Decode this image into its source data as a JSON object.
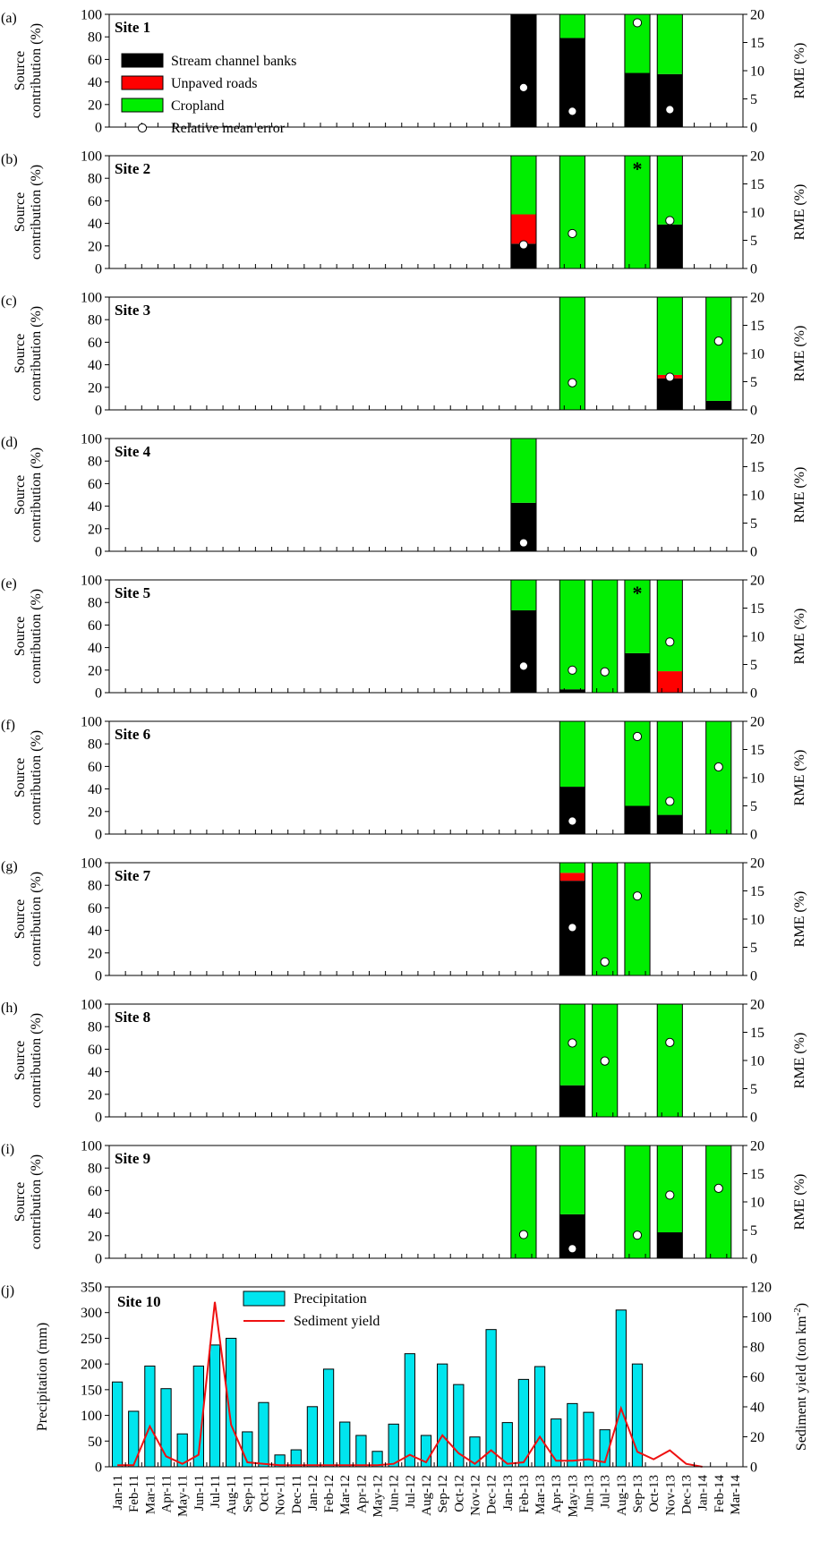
{
  "months": [
    "Jan-11",
    "Feb-11",
    "Mar-11",
    "Apr-11",
    "May-11",
    "Jun-11",
    "Jul-11",
    "Aug-11",
    "Sep-11",
    "Oct-11",
    "Nov-11",
    "Dec-11",
    "Jan-12",
    "Feb-12",
    "Mar-12",
    "Apr-12",
    "May-12",
    "Jun-12",
    "Jul-12",
    "Aug-12",
    "Sep-12",
    "Oct-12",
    "Nov-12",
    "Dec-12",
    "Jan-13",
    "Feb-13",
    "Mar-13",
    "Apr-13",
    "May-13",
    "Jun-13",
    "Jul-13",
    "Aug-13",
    "Sep-13",
    "Oct-13",
    "Nov-13",
    "Dec-13",
    "Jan-14",
    "Feb-14",
    "Mar-14"
  ],
  "colors": {
    "banks": "#000000",
    "roads": "#ff0000",
    "cropland": "#00ee00",
    "precip": "#00e5ee",
    "sediment": "#ee1111"
  },
  "source_axes": {
    "ylabel_line1": "Source",
    "ylabel_line2": "contribution (%)",
    "ylim": [
      0,
      100
    ],
    "yticks": [
      "0",
      "20",
      "40",
      "60",
      "80",
      "100"
    ],
    "rlabel": "RME (%)",
    "rlim": [
      0,
      20
    ],
    "rticks": [
      "0",
      "5",
      "10",
      "15",
      "20"
    ]
  },
  "legend_sources": {
    "banks": "Stream channel banks",
    "roads": "Unpaved roads",
    "cropland": "Cropland",
    "rme": "Relative mean error"
  },
  "chart_data": [
    {
      "type": "bar",
      "panel": "(a)",
      "title": "Site 1",
      "bars": [
        {
          "x": "Feb-13",
          "banks": 100,
          "roads": 0,
          "cropland": 0,
          "rme": 7
        },
        {
          "x": "May-13",
          "banks": 79,
          "roads": 0,
          "cropland": 21,
          "rme": 2.8
        },
        {
          "x": "Sep-13",
          "banks": 48,
          "roads": 0,
          "cropland": 52,
          "rme": 18.5
        },
        {
          "x": "Nov-13",
          "banks": 47,
          "roads": 0,
          "cropland": 53,
          "rme": 3.1
        }
      ]
    },
    {
      "type": "bar",
      "panel": "(b)",
      "title": "Site 2",
      "bars": [
        {
          "x": "Feb-13",
          "banks": 22,
          "roads": 26,
          "cropland": 52,
          "rme": 4.2
        },
        {
          "x": "May-13",
          "banks": 0,
          "roads": 0,
          "cropland": 100,
          "rme": 6.2
        },
        {
          "x": "Sep-13",
          "banks": 0,
          "roads": 0,
          "cropland": 100,
          "rme": null,
          "star": true
        },
        {
          "x": "Nov-13",
          "banks": 39,
          "roads": 0,
          "cropland": 61,
          "rme": 8.5
        }
      ]
    },
    {
      "type": "bar",
      "panel": "(c)",
      "title": "Site 3",
      "bars": [
        {
          "x": "May-13",
          "banks": 0,
          "roads": 0,
          "cropland": 100,
          "rme": 4.8
        },
        {
          "x": "Nov-13",
          "banks": 28,
          "roads": 3,
          "cropland": 69,
          "rme": 5.8
        },
        {
          "x": "Feb-14",
          "banks": 8,
          "roads": 0,
          "cropland": 92,
          "rme": 12.2
        }
      ]
    },
    {
      "type": "bar",
      "panel": "(d)",
      "title": "Site 4",
      "bars": [
        {
          "x": "Feb-13",
          "banks": 43,
          "roads": 0,
          "cropland": 57,
          "rme": 1.5
        }
      ]
    },
    {
      "type": "bar",
      "panel": "(e)",
      "title": "Site 5",
      "bars": [
        {
          "x": "Feb-13",
          "banks": 73,
          "roads": 0,
          "cropland": 27,
          "rme": 4.7
        },
        {
          "x": "May-13",
          "banks": 3,
          "roads": 0,
          "cropland": 97,
          "rme": 4
        },
        {
          "x": "Jul-13",
          "banks": 0,
          "roads": 0,
          "cropland": 100,
          "rme": 3.7
        },
        {
          "x": "Sep-13",
          "banks": 35,
          "roads": 0,
          "cropland": 65,
          "rme": null,
          "star": true
        },
        {
          "x": "Nov-13",
          "banks": 0,
          "roads": 19,
          "cropland": 81,
          "rme": 9
        }
      ]
    },
    {
      "type": "bar",
      "panel": "(f)",
      "title": "Site 6",
      "bars": [
        {
          "x": "May-13",
          "banks": 42,
          "roads": 0,
          "cropland": 58,
          "rme": 2.3
        },
        {
          "x": "Sep-13",
          "banks": 25,
          "roads": 0,
          "cropland": 75,
          "rme": 17.3
        },
        {
          "x": "Nov-13",
          "banks": 17,
          "roads": 0,
          "cropland": 83,
          "rme": 5.8
        },
        {
          "x": "Feb-14",
          "banks": 0,
          "roads": 0,
          "cropland": 100,
          "rme": 11.9
        }
      ]
    },
    {
      "type": "bar",
      "panel": "(g)",
      "title": "Site 7",
      "bars": [
        {
          "x": "May-13",
          "banks": 84,
          "roads": 7,
          "cropland": 9,
          "rme": 8.5
        },
        {
          "x": "Jul-13",
          "banks": 0,
          "roads": 0,
          "cropland": 100,
          "rme": 2.4
        },
        {
          "x": "Sep-13",
          "banks": 0,
          "roads": 0,
          "cropland": 100,
          "rme": 14.1
        }
      ]
    },
    {
      "type": "bar",
      "panel": "(h)",
      "title": "Site 8",
      "bars": [
        {
          "x": "May-13",
          "banks": 28,
          "roads": 0,
          "cropland": 72,
          "rme": 13.1
        },
        {
          "x": "Jul-13",
          "banks": 0,
          "roads": 0,
          "cropland": 100,
          "rme": 9.9
        },
        {
          "x": "Nov-13",
          "banks": 0,
          "roads": 0,
          "cropland": 100,
          "rme": 13.2
        }
      ]
    },
    {
      "type": "bar",
      "panel": "(i)",
      "title": "Site 9",
      "bars": [
        {
          "x": "Feb-13",
          "banks": 0,
          "roads": 0,
          "cropland": 100,
          "rme": 4.2
        },
        {
          "x": "May-13",
          "banks": 39,
          "roads": 0,
          "cropland": 61,
          "rme": 1.7
        },
        {
          "x": "Sep-13",
          "banks": 0,
          "roads": 0,
          "cropland": 100,
          "rme": 4.1
        },
        {
          "x": "Nov-13",
          "banks": 23,
          "roads": 0,
          "cropland": 77,
          "rme": 11.2
        },
        {
          "x": "Feb-14",
          "banks": 0,
          "roads": 0,
          "cropland": 100,
          "rme": 12.4
        }
      ]
    },
    {
      "type": "bar",
      "panel": "(j)",
      "title": "Site 10",
      "ylabel": "Precipitation (mm)",
      "ylim": [
        0,
        350
      ],
      "yticks": [
        "0",
        "50",
        "100",
        "150",
        "200",
        "250",
        "300",
        "350"
      ],
      "y2label_main": "Sediment yield (ton km",
      "y2label_sup": "-2",
      "y2label_end": ")",
      "y2lim": [
        0,
        120
      ],
      "y2ticks": [
        "0",
        "20",
        "40",
        "60",
        "80",
        "100",
        "120"
      ],
      "legend": {
        "precip": "Precipitation",
        "sediment": "Sediment yield"
      },
      "precipitation": [
        165,
        108,
        196,
        152,
        64,
        196,
        237,
        250,
        68,
        125,
        23,
        33,
        117,
        190,
        87,
        61,
        30,
        83,
        220,
        61,
        200,
        160,
        58,
        267,
        86,
        170,
        195,
        93,
        123,
        106,
        72,
        305,
        200,
        null,
        null,
        null,
        null,
        null,
        null
      ],
      "sediment": [
        1,
        1,
        27,
        7,
        2,
        8,
        110,
        28,
        3,
        2,
        1,
        1,
        1,
        1,
        1,
        1,
        1,
        2,
        8,
        3,
        21,
        9,
        2,
        11,
        2,
        3,
        20,
        4,
        4,
        5,
        3,
        39,
        10,
        5,
        11,
        2,
        0,
        null,
        null
      ]
    }
  ]
}
